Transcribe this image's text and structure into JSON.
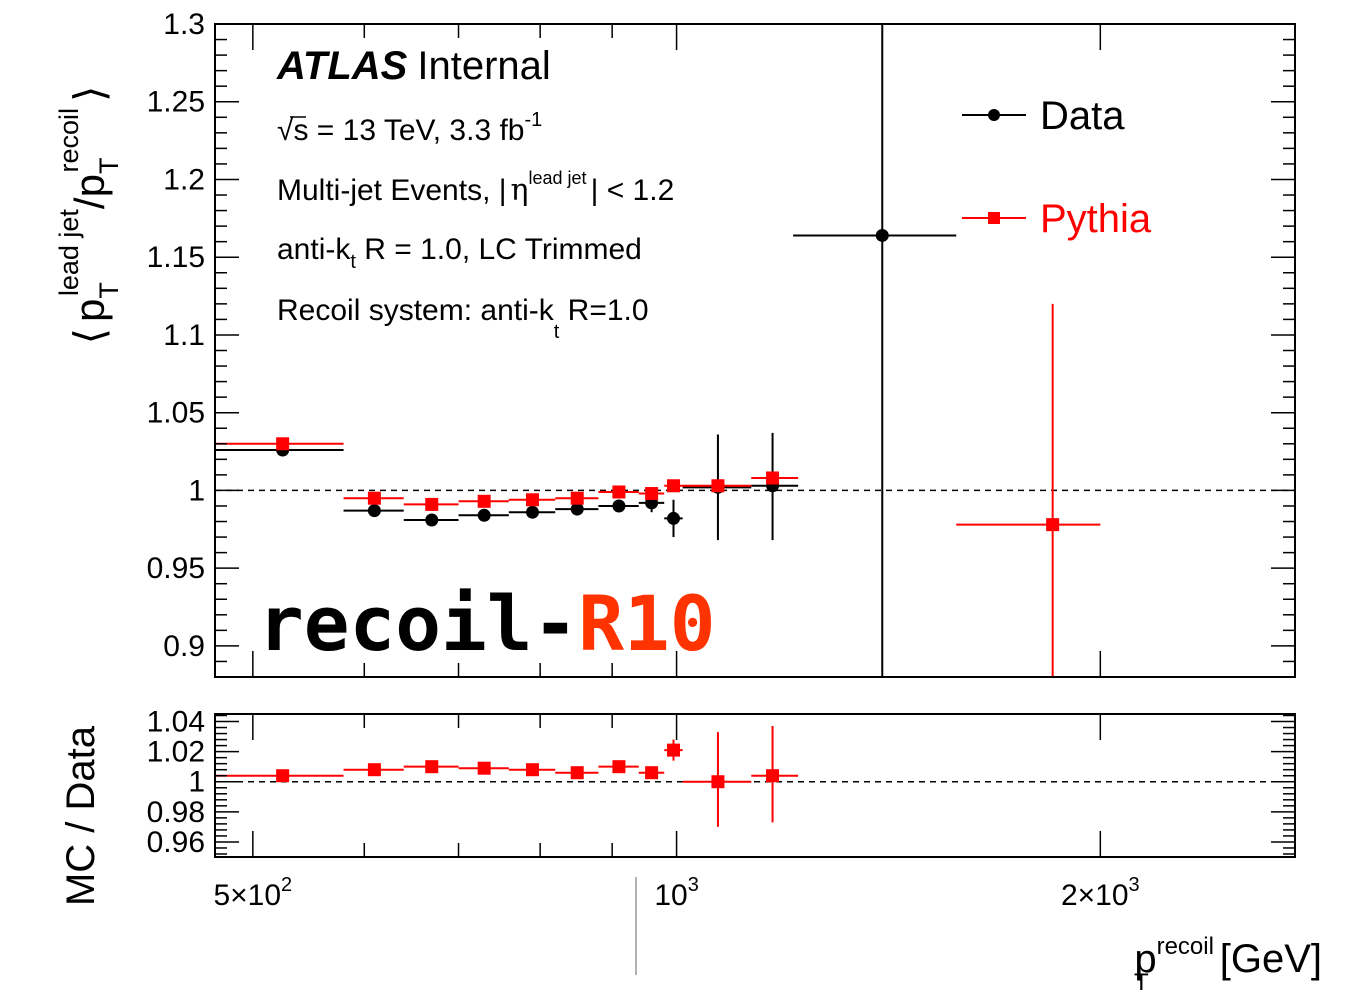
{
  "chart_data": [
    {
      "type": "scatter",
      "xscale": "log",
      "xlim": [
        470,
        2750
      ],
      "ylim": [
        0.88,
        1.3
      ],
      "yticks": [
        "0.9",
        "0.95",
        "1",
        "1.05",
        "1.1",
        "1.15",
        "1.2",
        "1.25",
        "1.3"
      ],
      "ylabel": {
        "open": "⟨",
        "p": "p",
        "T1": "T",
        "sup1": "lead jet",
        "slash": "/p",
        "T2": "T",
        "sup2": "recoil",
        "close": "⟩"
      },
      "reference_line": 1,
      "annotations": {
        "atlas": "ATLAS",
        "internal": "Internal",
        "energy": {
          "sqrt": "√",
          "s_text": "s = 13 TeV, 3.3 fb",
          "sup": "-1"
        },
        "events": {
          "pre": "Multi-jet Events, ",
          "bar1": "|",
          "eta": "η",
          "sup": "lead jet",
          "bar2": "|",
          "post": " < 1.2"
        },
        "jets": {
          "pre": "anti-k",
          "sub": "t",
          "post": " R = 1.0, LC Trimmed"
        },
        "recoil": {
          "pre": "Recoil system: anti-k",
          "sub": "t",
          "post": " R=1.0"
        },
        "tag_black": "recoil-",
        "tag_red": "R10"
      },
      "legend": {
        "position": "top-right",
        "entries": [
          {
            "label": "Data",
            "color": "#000000",
            "marker": "circle"
          },
          {
            "label": "Pythia",
            "color": "#ff0000",
            "marker": "square"
          }
        ]
      },
      "series": [
        {
          "name": "Data",
          "color": "#000000",
          "marker": "circle",
          "points": [
            {
              "x": 525,
              "xlo": 470,
              "xhi": 580,
              "y": 1.026,
              "ylo": 1.026,
              "yhi": 1.026
            },
            {
              "x": 610,
              "xlo": 580,
              "xhi": 640,
              "y": 0.987,
              "ylo": 0.987,
              "yhi": 0.987
            },
            {
              "x": 670,
              "xlo": 640,
              "xhi": 700,
              "y": 0.981,
              "ylo": 0.981,
              "yhi": 0.981
            },
            {
              "x": 730,
              "xlo": 700,
              "xhi": 760,
              "y": 0.984,
              "ylo": 0.984,
              "yhi": 0.984
            },
            {
              "x": 790,
              "xlo": 760,
              "xhi": 820,
              "y": 0.986,
              "ylo": 0.986,
              "yhi": 0.986
            },
            {
              "x": 850,
              "xlo": 820,
              "xhi": 880,
              "y": 0.988,
              "ylo": 0.988,
              "yhi": 0.988
            },
            {
              "x": 910,
              "xlo": 880,
              "xhi": 940,
              "y": 0.99,
              "ylo": 0.99,
              "yhi": 0.99
            },
            {
              "x": 960,
              "xlo": 940,
              "xhi": 980,
              "y": 0.992,
              "ylo": 0.986,
              "yhi": 0.998
            },
            {
              "x": 995,
              "xlo": 980,
              "xhi": 1010,
              "y": 0.982,
              "ylo": 0.97,
              "yhi": 0.994
            },
            {
              "x": 1070,
              "xlo": 1010,
              "xhi": 1130,
              "y": 1.002,
              "ylo": 0.968,
              "yhi": 1.036
            },
            {
              "x": 1170,
              "xlo": 1130,
              "xhi": 1220,
              "y": 1.003,
              "ylo": 0.968,
              "yhi": 1.037
            },
            {
              "x": 1400,
              "xlo": 1210,
              "xhi": 1580,
              "y": 1.164,
              "ylo": 0.0,
              "yhi": 2.0
            }
          ]
        },
        {
          "name": "Pythia",
          "color": "#ff0000",
          "marker": "square",
          "points": [
            {
              "x": 525,
              "xlo": 470,
              "xhi": 580,
              "y": 1.03,
              "ylo": 1.03,
              "yhi": 1.03
            },
            {
              "x": 610,
              "xlo": 580,
              "xhi": 640,
              "y": 0.995,
              "ylo": 0.995,
              "yhi": 0.995
            },
            {
              "x": 670,
              "xlo": 640,
              "xhi": 700,
              "y": 0.991,
              "ylo": 0.991,
              "yhi": 0.991
            },
            {
              "x": 730,
              "xlo": 700,
              "xhi": 760,
              "y": 0.993,
              "ylo": 0.993,
              "yhi": 0.993
            },
            {
              "x": 790,
              "xlo": 760,
              "xhi": 820,
              "y": 0.994,
              "ylo": 0.994,
              "yhi": 0.994
            },
            {
              "x": 850,
              "xlo": 820,
              "xhi": 880,
              "y": 0.995,
              "ylo": 0.995,
              "yhi": 0.995
            },
            {
              "x": 910,
              "xlo": 880,
              "xhi": 940,
              "y": 0.999,
              "ylo": 0.999,
              "yhi": 0.999
            },
            {
              "x": 960,
              "xlo": 940,
              "xhi": 980,
              "y": 0.998,
              "ylo": 0.998,
              "yhi": 0.998
            },
            {
              "x": 995,
              "xlo": 980,
              "xhi": 1010,
              "y": 1.003,
              "ylo": 1.003,
              "yhi": 1.003
            },
            {
              "x": 1070,
              "xlo": 1010,
              "xhi": 1130,
              "y": 1.003,
              "ylo": 1.003,
              "yhi": 1.003
            },
            {
              "x": 1170,
              "xlo": 1130,
              "xhi": 1220,
              "y": 1.008,
              "ylo": 1.008,
              "yhi": 1.008
            },
            {
              "x": 1850,
              "xlo": 1580,
              "xhi": 2000,
              "y": 0.978,
              "ylo": 0.0,
              "yhi": 1.12
            }
          ]
        }
      ]
    },
    {
      "type": "scatter",
      "xscale": "log",
      "xlim": [
        470,
        2750
      ],
      "ylim": [
        0.95,
        1.045
      ],
      "yticks": [
        "0.96",
        "0.98",
        "1",
        "1.02",
        "1.04"
      ],
      "xticks": [
        {
          "value": 500,
          "base": "5×10",
          "sup": "2"
        },
        {
          "value": 1000,
          "base": "10",
          "sup": "3"
        },
        {
          "value": 2000,
          "base": "2×10",
          "sup": "3"
        }
      ],
      "ylabel": "MC / Data",
      "xlabel": {
        "p": "p",
        "sup": "recoil",
        "sub": "T",
        "unit": " [GeV]"
      },
      "reference_line": 1,
      "series": [
        {
          "name": "Pythia",
          "color": "#ff0000",
          "marker": "square",
          "points": [
            {
              "x": 525,
              "xlo": 470,
              "xhi": 580,
              "y": 1.004,
              "ylo": 1.002,
              "yhi": 1.006
            },
            {
              "x": 610,
              "xlo": 580,
              "xhi": 640,
              "y": 1.008,
              "ylo": 1.006,
              "yhi": 1.01
            },
            {
              "x": 670,
              "xlo": 640,
              "xhi": 700,
              "y": 1.01,
              "ylo": 1.008,
              "yhi": 1.012
            },
            {
              "x": 730,
              "xlo": 700,
              "xhi": 760,
              "y": 1.009,
              "ylo": 1.007,
              "yhi": 1.011
            },
            {
              "x": 790,
              "xlo": 760,
              "xhi": 820,
              "y": 1.008,
              "ylo": 1.006,
              "yhi": 1.01
            },
            {
              "x": 850,
              "xlo": 820,
              "xhi": 880,
              "y": 1.006,
              "ylo": 1.004,
              "yhi": 1.008
            },
            {
              "x": 910,
              "xlo": 880,
              "xhi": 940,
              "y": 1.01,
              "ylo": 1.007,
              "yhi": 1.013
            },
            {
              "x": 960,
              "xlo": 940,
              "xhi": 980,
              "y": 1.006,
              "ylo": 1.002,
              "yhi": 1.01
            },
            {
              "x": 995,
              "xlo": 980,
              "xhi": 1010,
              "y": 1.021,
              "ylo": 1.014,
              "yhi": 1.028
            },
            {
              "x": 1070,
              "xlo": 1010,
              "xhi": 1130,
              "y": 1.0,
              "ylo": 0.97,
              "yhi": 1.033
            },
            {
              "x": 1170,
              "xlo": 1130,
              "xhi": 1220,
              "y": 1.004,
              "ylo": 0.973,
              "yhi": 1.037
            }
          ]
        }
      ]
    }
  ]
}
